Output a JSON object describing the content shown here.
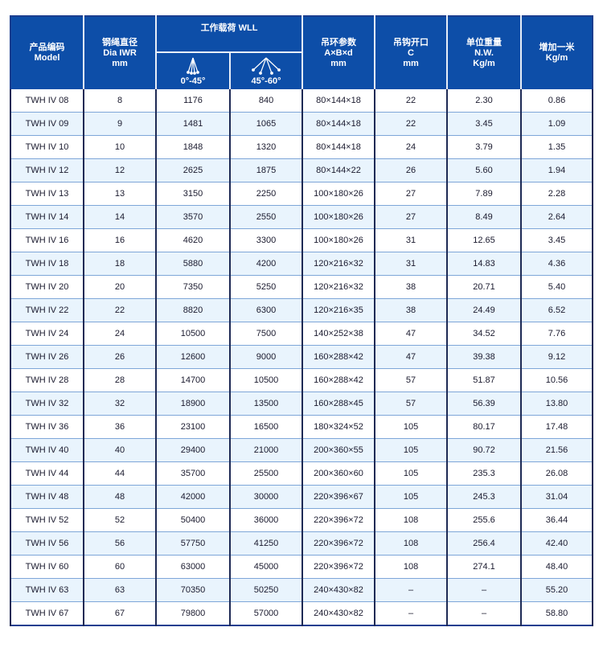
{
  "header": {
    "model": [
      "产品编码",
      "Model"
    ],
    "dia": [
      "钢绳直径",
      "Dia IWR",
      "mm"
    ],
    "wll": "工作载荷 WLL",
    "wll_angle1": "0°-45°",
    "wll_angle2": "45°-60°",
    "ring": [
      "吊环参数",
      "A×B×d",
      "mm"
    ],
    "hook": [
      "吊钩开口",
      "C",
      "mm"
    ],
    "weight": [
      "单位重量",
      "N.W.",
      "Kg/m"
    ],
    "extra": [
      "增加一米",
      "Kg/m"
    ]
  },
  "colors": {
    "header_bg": "#0d4ea8",
    "alt_row": "#e9f4fd"
  },
  "rows": [
    [
      "TWH IV 08",
      "8",
      "1176",
      "840",
      "80×144×18",
      "22",
      "2.30",
      "0.86"
    ],
    [
      "TWH IV 09",
      "9",
      "1481",
      "1065",
      "80×144×18",
      "22",
      "3.45",
      "1.09"
    ],
    [
      "TWH IV 10",
      "10",
      "1848",
      "1320",
      "80×144×18",
      "24",
      "3.79",
      "1.35"
    ],
    [
      "TWH IV 12",
      "12",
      "2625",
      "1875",
      "80×144×22",
      "26",
      "5.60",
      "1.94"
    ],
    [
      "TWH IV 13",
      "13",
      "3150",
      "2250",
      "100×180×26",
      "27",
      "7.89",
      "2.28"
    ],
    [
      "TWH IV 14",
      "14",
      "3570",
      "2550",
      "100×180×26",
      "27",
      "8.49",
      "2.64"
    ],
    [
      "TWH IV 16",
      "16",
      "4620",
      "3300",
      "100×180×26",
      "31",
      "12.65",
      "3.45"
    ],
    [
      "TWH IV 18",
      "18",
      "5880",
      "4200",
      "120×216×32",
      "31",
      "14.83",
      "4.36"
    ],
    [
      "TWH IV 20",
      "20",
      "7350",
      "5250",
      "120×216×32",
      "38",
      "20.71",
      "5.40"
    ],
    [
      "TWH IV 22",
      "22",
      "8820",
      "6300",
      "120×216×35",
      "38",
      "24.49",
      "6.52"
    ],
    [
      "TWH IV 24",
      "24",
      "10500",
      "7500",
      "140×252×38",
      "47",
      "34.52",
      "7.76"
    ],
    [
      "TWH IV 26",
      "26",
      "12600",
      "9000",
      "160×288×42",
      "47",
      "39.38",
      "9.12"
    ],
    [
      "TWH IV 28",
      "28",
      "14700",
      "10500",
      "160×288×42",
      "57",
      "51.87",
      "10.56"
    ],
    [
      "TWH IV 32",
      "32",
      "18900",
      "13500",
      "160×288×45",
      "57",
      "56.39",
      "13.80"
    ],
    [
      "TWH IV 36",
      "36",
      "23100",
      "16500",
      "180×324×52",
      "105",
      "80.17",
      "17.48"
    ],
    [
      "TWH IV 40",
      "40",
      "29400",
      "21000",
      "200×360×55",
      "105",
      "90.72",
      "21.56"
    ],
    [
      "TWH IV 44",
      "44",
      "35700",
      "25500",
      "200×360×60",
      "105",
      "235.3",
      "26.08"
    ],
    [
      "TWH IV 48",
      "48",
      "42000",
      "30000",
      "220×396×67",
      "105",
      "245.3",
      "31.04"
    ],
    [
      "TWH IV 52",
      "52",
      "50400",
      "36000",
      "220×396×72",
      "108",
      "255.6",
      "36.44"
    ],
    [
      "TWH IV 56",
      "56",
      "57750",
      "41250",
      "220×396×72",
      "108",
      "256.4",
      "42.40"
    ],
    [
      "TWH IV 60",
      "60",
      "63000",
      "45000",
      "220×396×72",
      "108",
      "274.1",
      "48.40"
    ],
    [
      "TWH IV 63",
      "63",
      "70350",
      "50250",
      "240×430×82",
      "–",
      "–",
      "55.20"
    ],
    [
      "TWH IV 67",
      "67",
      "79800",
      "57000",
      "240×430×82",
      "–",
      "–",
      "58.80"
    ]
  ]
}
